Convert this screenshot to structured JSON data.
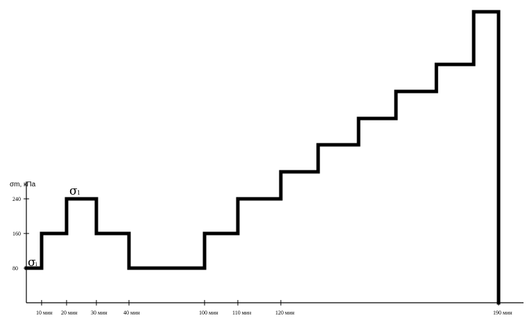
{
  "chart_data": {
    "type": "line",
    "title": "",
    "ylabel": "σm, кПа",
    "y_ticks": [
      80,
      160,
      240
    ],
    "y_tick_labels": [
      "80",
      "160",
      "240"
    ],
    "x_ticks": [
      10,
      20,
      30,
      40,
      100,
      110,
      120,
      190
    ],
    "x_tick_labels": [
      "10 мин",
      "20 мин",
      "30 мин",
      "40 мин",
      "100 мин",
      "110 мин",
      "120 мин",
      "190 мин"
    ],
    "annotations": [
      {
        "label": "σ",
        "sub": "i",
        "at": [
          0,
          80
        ]
      },
      {
        "label": "σ",
        "sub": "1",
        "at": [
          20,
          240
        ]
      }
    ],
    "series": [
      {
        "x": [
          0,
          10,
          10,
          20,
          20,
          30,
          30,
          40,
          40,
          100,
          100,
          110,
          110,
          120,
          120,
          132,
          132,
          145,
          145,
          157,
          157,
          170,
          170,
          182,
          182,
          190,
          190
        ],
        "y": [
          80,
          80,
          160,
          160,
          240,
          240,
          160,
          160,
          80,
          80,
          160,
          160,
          240,
          240,
          320,
          320,
          400,
          400,
          480,
          480,
          560,
          560,
          640,
          640,
          720,
          720,
          0
        ]
      }
    ],
    "xlim": [
      0,
      190
    ],
    "ylim": [
      0,
      720
    ],
    "grid": false
  }
}
